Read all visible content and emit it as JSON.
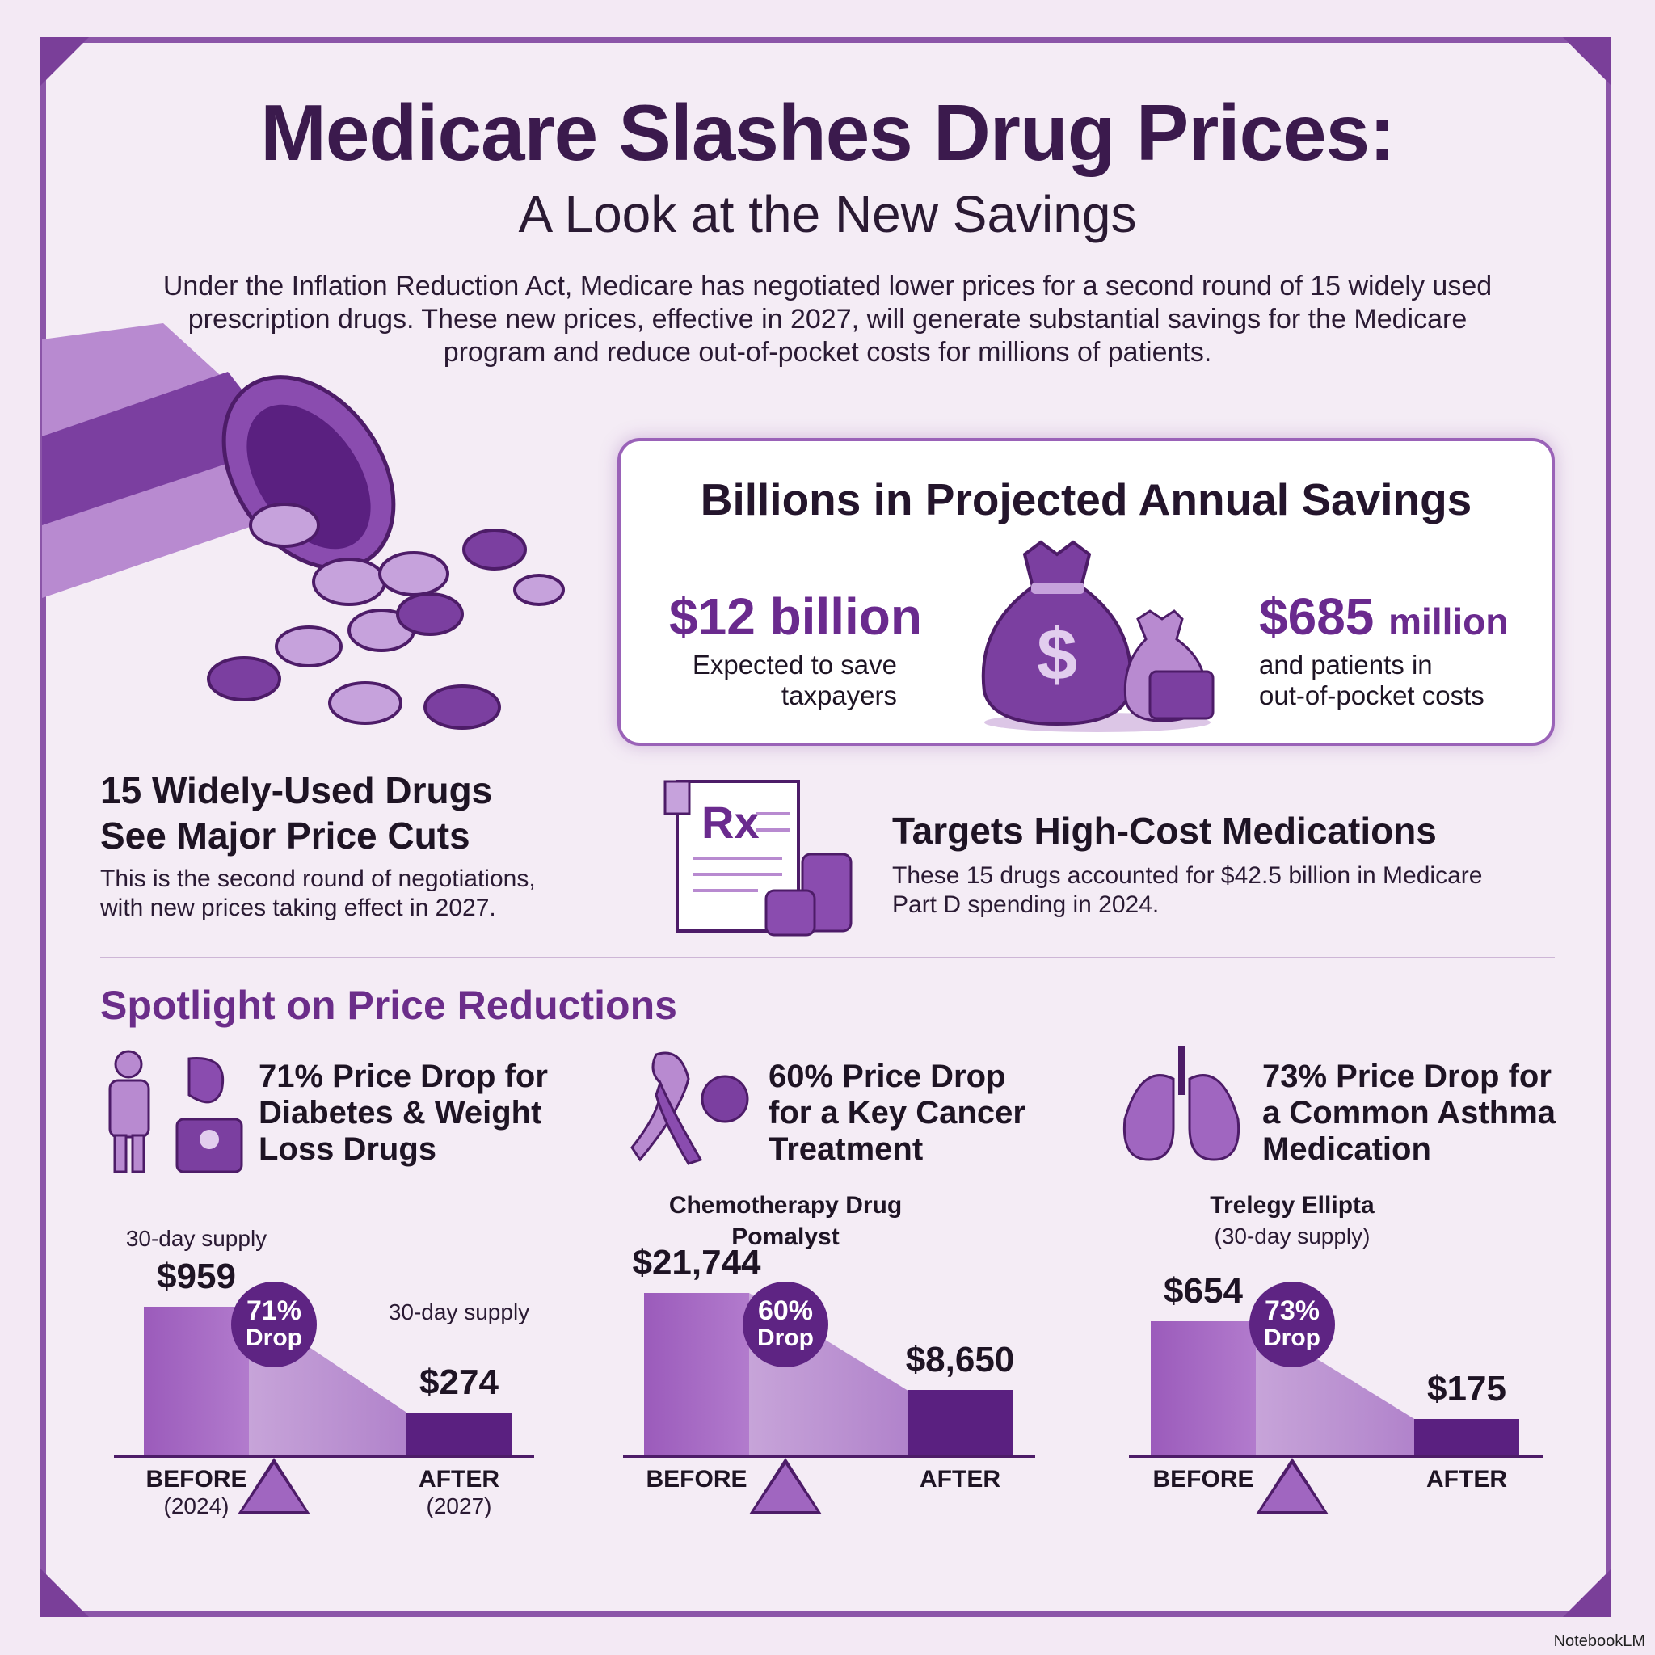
{
  "header": {
    "title": "Medicare Slashes Drug Prices:",
    "subtitle": "A Look at the New Savings",
    "intro": "Under the Inflation Reduction Act, Medicare has negotiated lower prices for a second round of 15 widely used prescription drugs. These new prices, effective in 2027, will generate substantial savings for the Medicare program and reduce out-of-pocket costs for millions of patients."
  },
  "savings": {
    "heading": "Billions in Projected Annual Savings",
    "taxpayers_amount": "$12 billion",
    "taxpayers_text_1": "Expected to save",
    "taxpayers_text_2": "taxpayers",
    "patients_amount": "$685",
    "patients_unit": "million",
    "patients_text_1": "and patients in",
    "patients_text_2": "out-of-pocket costs"
  },
  "drugs": {
    "heading_1": "15 Widely-Used Drugs",
    "heading_2": "See Major Price Cuts",
    "text_1": "This is the second round of negotiations,",
    "text_2": "with new prices taking effect in 2027."
  },
  "targets": {
    "heading": "Targets High-Cost Medications",
    "text_1": "These 15 drugs accounted for $42.5 billion in Medicare",
    "text_2": "Part D spending in 2024."
  },
  "spotlight": {
    "heading": "Spotlight on Price Reductions",
    "items": [
      {
        "heading": [
          "71% Price Drop for",
          "Diabetes & Weight",
          "Loss Drugs"
        ],
        "drug_name": "",
        "drug_note": "",
        "before_note": "30-day supply",
        "after_note": "30-day supply",
        "before_price": "$959",
        "after_price": "$274",
        "before_value": 959,
        "after_value": 274,
        "pct": "71%",
        "drop": "Drop",
        "before_label": "BEFORE",
        "before_year": "(2024)",
        "after_label": "AFTER",
        "after_year": "(2027)"
      },
      {
        "heading": [
          "60% Price Drop",
          "for a Key Cancer",
          "Treatment"
        ],
        "drug_name": "Chemotherapy Drug",
        "drug_note": "Pomalyst",
        "before_price": "$21,744",
        "after_price": "$8,650",
        "before_value": 21744,
        "after_value": 8650,
        "pct": "60%",
        "drop": "Drop",
        "before_label": "BEFORE",
        "after_label": "AFTER"
      },
      {
        "heading": [
          "73% Price Drop for",
          "a Common Asthma",
          "Medication"
        ],
        "drug_name": "Trelegy Ellipta",
        "drug_note": "(30-day supply)",
        "before_price": "$654",
        "after_price": "$175",
        "before_value": 654,
        "after_value": 175,
        "pct": "73%",
        "drop": "Drop",
        "before_label": "BEFORE",
        "after_label": "AFTER"
      }
    ]
  },
  "footer": {
    "brand": "NotebookLM"
  },
  "colors": {
    "accent": "#6b2d8a",
    "before_bar": "#a86ac4",
    "after_bar": "#5a2080",
    "background": "#f3e9f4"
  }
}
